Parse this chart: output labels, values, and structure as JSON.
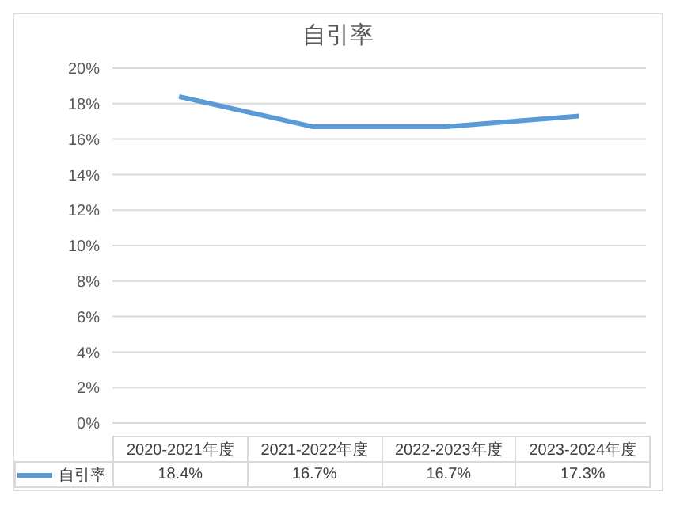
{
  "chart_data": {
    "type": "line",
    "title": "自引率",
    "categories": [
      "2020-2021年度",
      "2021-2022年度",
      "2022-2023年度",
      "2023-2024年度"
    ],
    "series": [
      {
        "name": "自引率",
        "color": "#5b9bd5",
        "values": [
          18.4,
          16.7,
          16.7,
          17.3
        ],
        "value_labels": [
          "18.4%",
          "16.7%",
          "16.7%",
          "17.3%"
        ]
      }
    ],
    "ylim": [
      0,
      20
    ],
    "yticks": [
      {
        "value": 0,
        "label": "0%"
      },
      {
        "value": 2,
        "label": "2%"
      },
      {
        "value": 4,
        "label": "4%"
      },
      {
        "value": 6,
        "label": "6%"
      },
      {
        "value": 8,
        "label": "8%"
      },
      {
        "value": 10,
        "label": "10%"
      },
      {
        "value": 12,
        "label": "12%"
      },
      {
        "value": 14,
        "label": "14%"
      },
      {
        "value": 16,
        "label": "16%"
      },
      {
        "value": 18,
        "label": "18%"
      },
      {
        "value": 20,
        "label": "20%"
      }
    ],
    "grid": "y",
    "legend": "bottom",
    "marker": "none",
    "line_style": "solid"
  }
}
